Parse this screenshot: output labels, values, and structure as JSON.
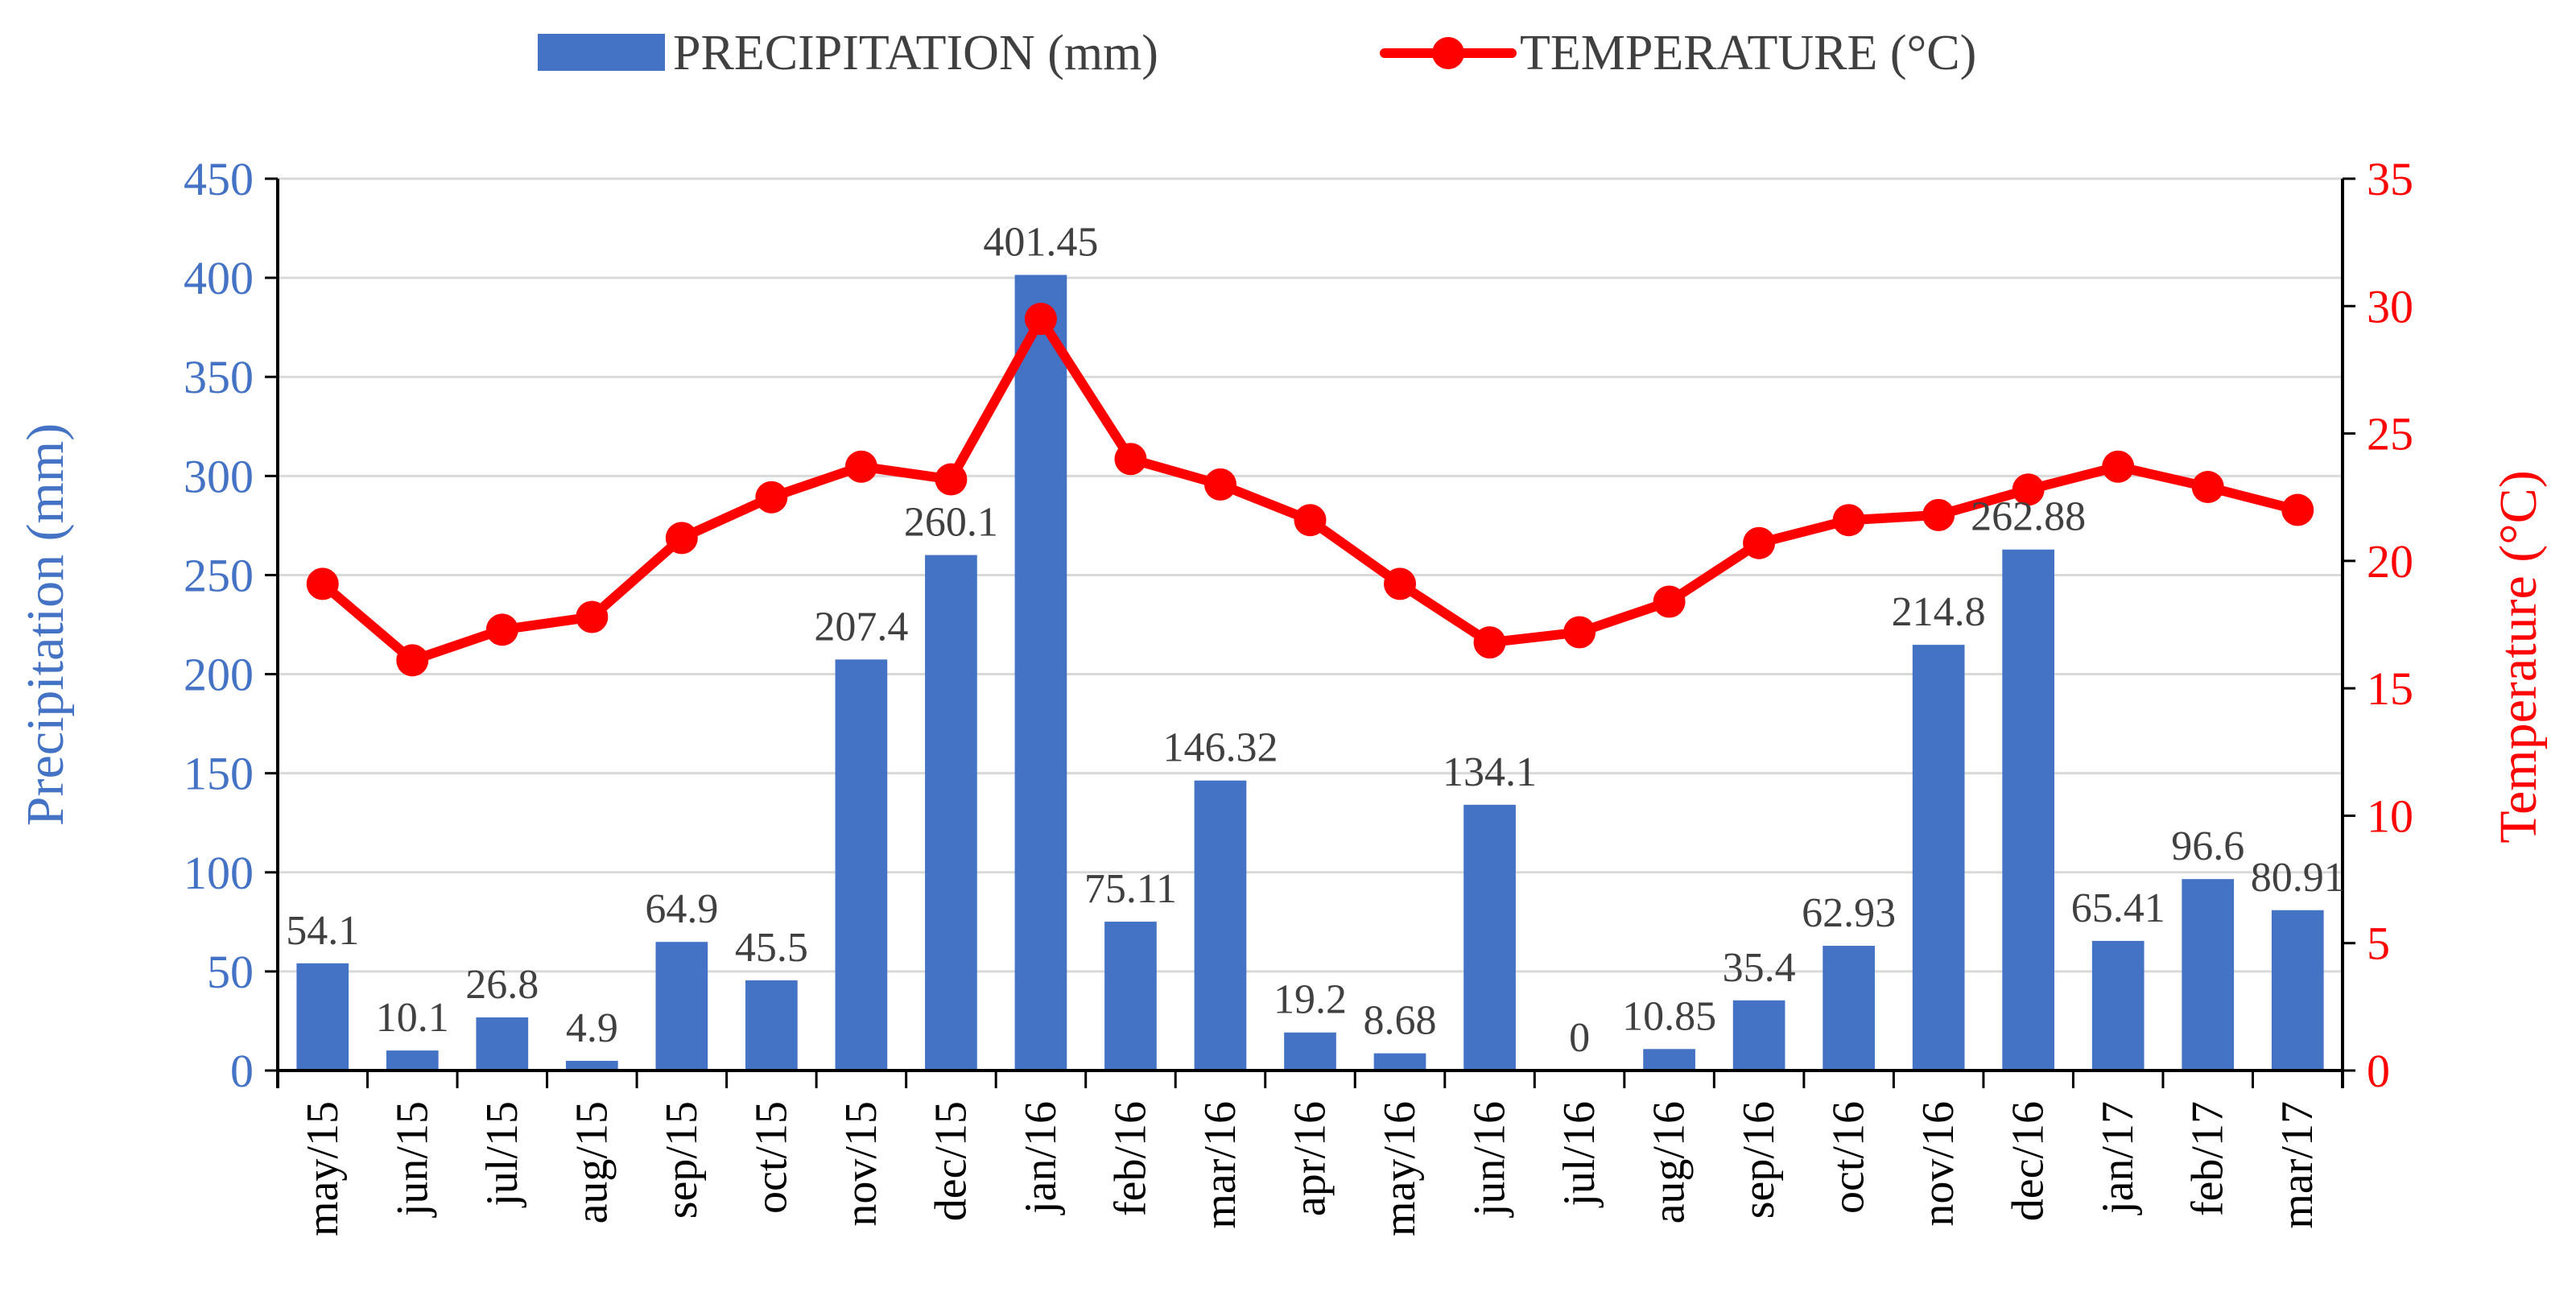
{
  "chart_data": {
    "type": "bar",
    "title": "",
    "categories": [
      "may/15",
      "jun/15",
      "jul/15",
      "aug/15",
      "sep/15",
      "oct/15",
      "nov/15",
      "dec/15",
      "jan/16",
      "feb/16",
      "mar/16",
      "apr/16",
      "may/16",
      "jun/16",
      "jul/16",
      "aug/16",
      "sep/16",
      "oct/16",
      "nov/16",
      "dec/16",
      "jan/17",
      "feb/17",
      "mar/17"
    ],
    "series": [
      {
        "name": "PRECIPITATION (mm)",
        "kind": "bar",
        "axis": "left",
        "color": "#4472c4",
        "values": [
          54.1,
          10.1,
          26.8,
          4.9,
          64.9,
          45.5,
          207.4,
          260.1,
          401.45,
          75.11,
          146.32,
          19.2,
          8.68,
          134.1,
          0,
          10.85,
          35.4,
          62.93,
          214.8,
          262.88,
          65.41,
          96.6,
          80.91
        ],
        "labels": [
          "54.1",
          "10.1",
          "26.8",
          "4.9",
          "64.9",
          "45.5",
          "207.4",
          "260.1",
          "401.45",
          "75.11",
          "146.32",
          "19.2",
          "8.68",
          "134.1",
          "0",
          "10.85",
          "35.4",
          "62.93",
          "214.8",
          "262.88",
          "65.41",
          "96.6",
          "80.91"
        ]
      },
      {
        "name": "TEMPERATURE (°C)",
        "kind": "line",
        "axis": "right",
        "color": "#ff0000",
        "values": [
          19.1,
          16.1,
          17.3,
          17.8,
          20.9,
          22.5,
          23.7,
          23.2,
          29.5,
          24.0,
          23.0,
          21.6,
          19.1,
          16.8,
          17.2,
          18.4,
          20.7,
          21.6,
          21.8,
          22.8,
          23.7,
          22.9,
          22.0
        ]
      }
    ],
    "ylabel": "Precipitation (mm)",
    "y2label": "Temperature (°C)",
    "xlabel": "",
    "ylim": [
      0,
      450
    ],
    "y2lim": [
      0,
      35
    ],
    "yticks": [
      "0",
      "50",
      "100",
      "150",
      "200",
      "250",
      "300",
      "350",
      "400",
      "450"
    ],
    "y2ticks": [
      "0",
      "5",
      "10",
      "15",
      "20",
      "25",
      "30",
      "35"
    ],
    "grid": true,
    "legend_position": "top"
  }
}
